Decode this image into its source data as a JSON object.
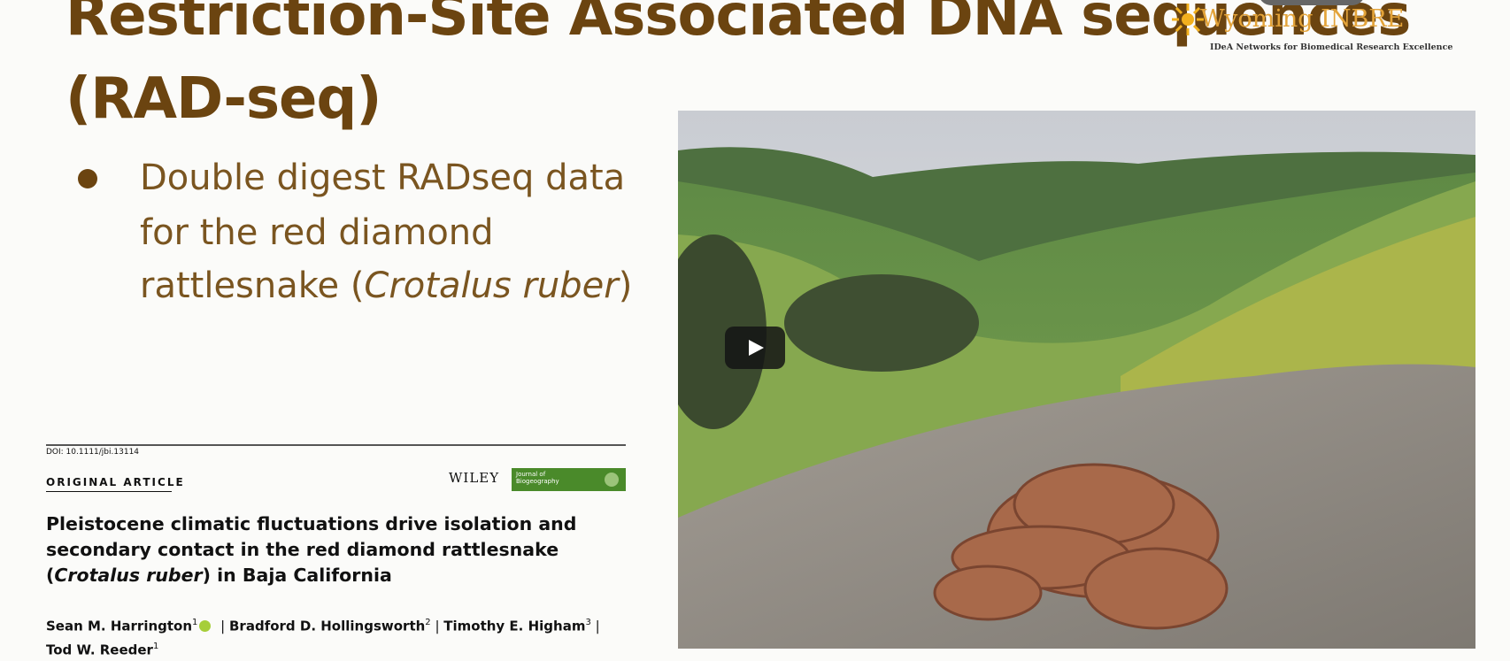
{
  "slide": {
    "title_lines": [
      "Restriction-Site Associated DNA sequences",
      "(RAD-seq)"
    ],
    "logo": {
      "name": "Wyoming INBRE",
      "tagline": "IDeA Networks for Biomedical Research Excellence"
    },
    "bullet": {
      "lines": [
        "Double digest RADseq data",
        "for the red diamond",
        "rattlesnake ("
      ],
      "species": "Crotalus ruber",
      "close": ")"
    },
    "paper": {
      "doi": "DOI: 10.1111/jbi.13114",
      "section": "ORIGINAL ARTICLE",
      "publisher": "WILEY",
      "journal": "Journal of Biogeography",
      "title_start": "Pleistocene climatic fluctuations drive isolation and secondary contact in the red diamond rattlesnake (",
      "title_species": "Crotalus ruber",
      "title_end": ") in Baja California",
      "authors": [
        {
          "name": "Sean M. Harrington",
          "affiliation": "1"
        },
        {
          "name": "Bradford D. Hollingsworth",
          "affiliation": "2"
        },
        {
          "name": "Timothy E. Higham",
          "affiliation": "3"
        },
        {
          "name": "Tod W. Reeder",
          "affiliation": "1"
        }
      ]
    }
  }
}
